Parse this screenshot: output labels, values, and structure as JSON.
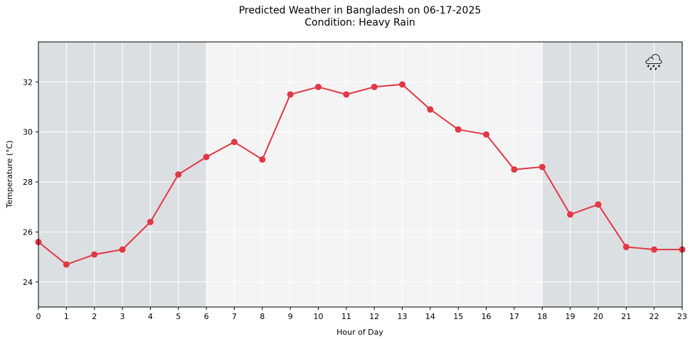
{
  "chart_data": {
    "type": "line",
    "title": "Predicted Weather in Bangladesh on 06-17-2025",
    "subtitle": "Condition: Heavy Rain",
    "xlabel": "Hour of Day",
    "ylabel": "Temperature (°C)",
    "xlim": [
      0,
      23
    ],
    "ylim": [
      23,
      33.6
    ],
    "x": [
      0,
      1,
      2,
      3,
      4,
      5,
      6,
      7,
      8,
      9,
      10,
      11,
      12,
      13,
      14,
      15,
      16,
      17,
      18,
      19,
      20,
      21,
      22,
      23
    ],
    "values": [
      25.6,
      24.7,
      25.1,
      25.3,
      26.4,
      28.3,
      29.0,
      29.6,
      28.9,
      31.5,
      31.8,
      31.5,
      31.8,
      31.9,
      30.9,
      30.1,
      29.9,
      28.5,
      28.6,
      26.7,
      27.1,
      25.4,
      25.3,
      25.3
    ],
    "xticks": [
      "0",
      "1",
      "2",
      "3",
      "4",
      "5",
      "6",
      "7",
      "8",
      "9",
      "10",
      "11",
      "12",
      "13",
      "14",
      "15",
      "16",
      "17",
      "18",
      "19",
      "20",
      "21",
      "22",
      "23"
    ],
    "yticks": [
      24,
      26,
      28,
      30,
      32
    ],
    "night_bands": [
      [
        0,
        6
      ],
      [
        18,
        23
      ]
    ],
    "grid": true,
    "weather_icon": "🌧",
    "colors": {
      "line": "#e23744",
      "night": "#dcdfe2",
      "day": "#f4f4f4",
      "grid": "#ffffff"
    }
  }
}
